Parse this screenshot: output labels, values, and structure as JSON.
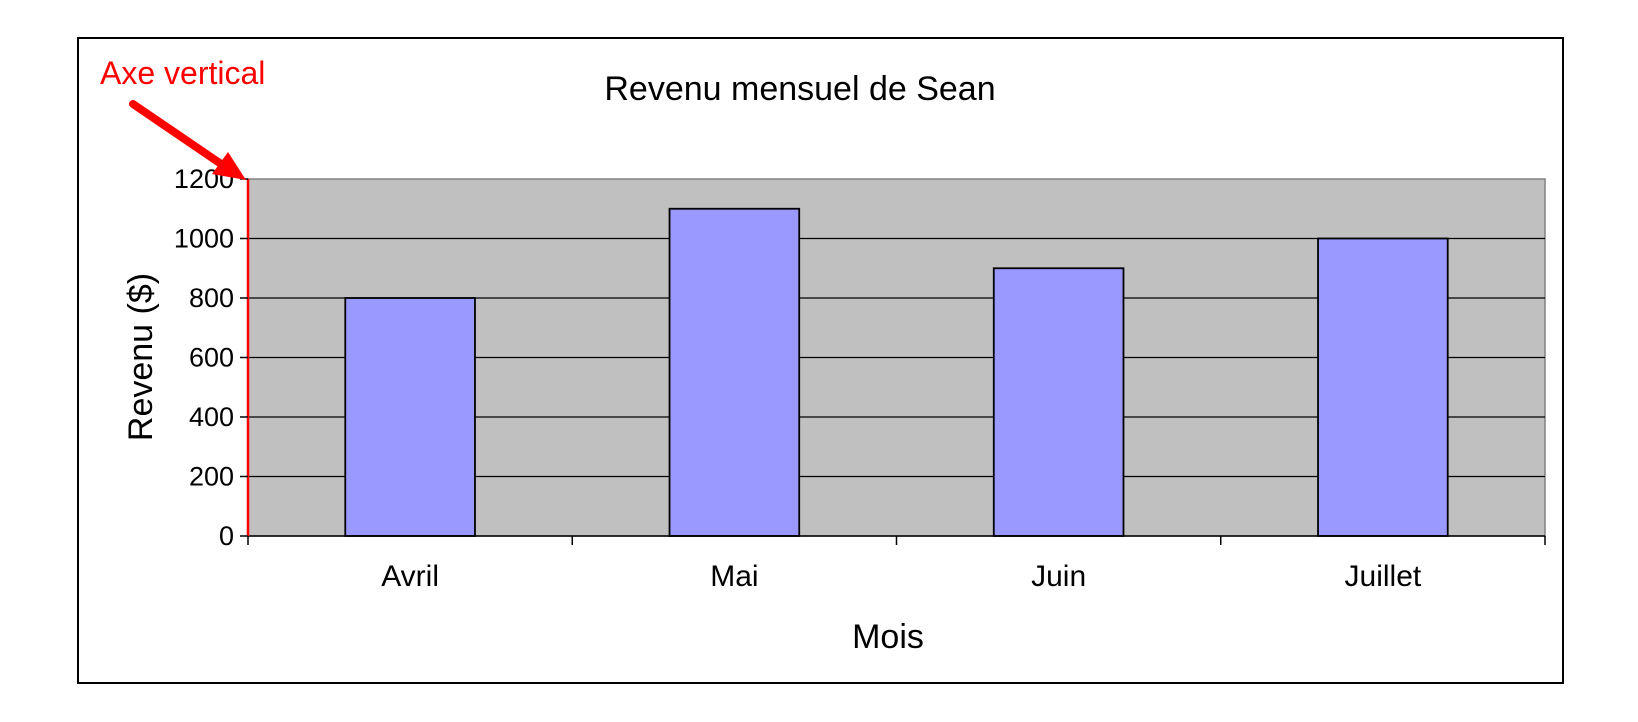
{
  "chart_data": {
    "type": "bar",
    "title": "Revenu mensuel de Sean",
    "xlabel": "Mois",
    "ylabel": "Revenu ($)",
    "categories": [
      "Avril",
      "Mai",
      "Juin",
      "Juillet"
    ],
    "values": [
      800,
      1100,
      900,
      1000
    ],
    "ylim": [
      0,
      1200
    ],
    "yticks": [
      0,
      200,
      400,
      600,
      800,
      1000,
      1200
    ],
    "grid": true,
    "legend": "none",
    "annotation": "Axe vertical"
  },
  "colors": {
    "bar_fill": "#9999ff",
    "plot_background": "#c0c0c0",
    "annotation": "#ff0000",
    "vertical_axis": "#ff0000"
  }
}
